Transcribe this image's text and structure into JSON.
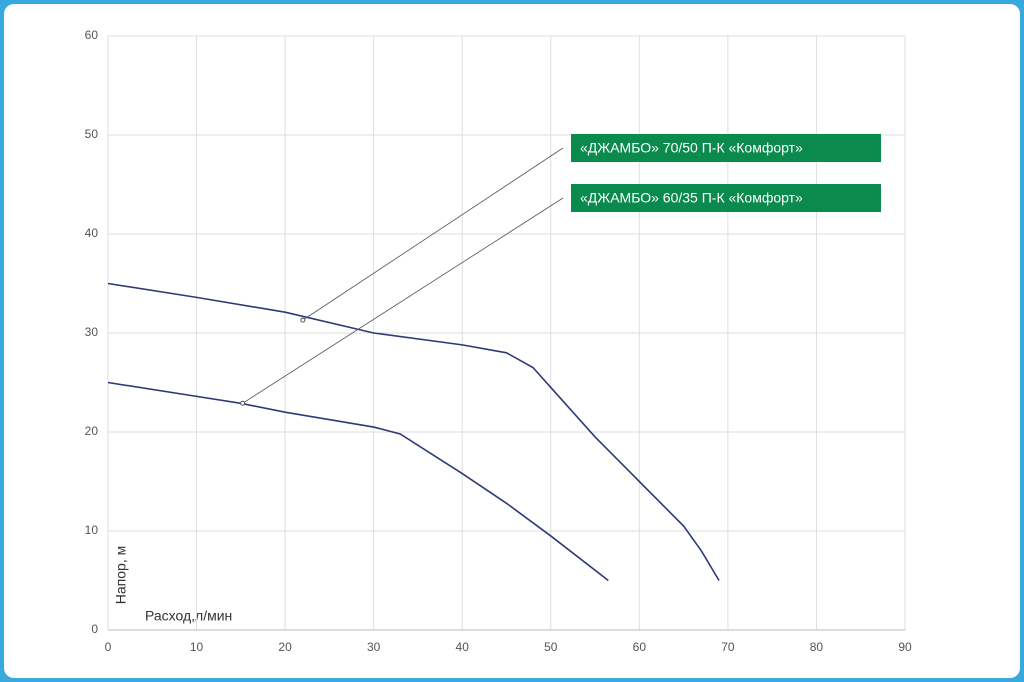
{
  "chart_data": {
    "type": "line",
    "xlabel": "Расход,л/мин",
    "ylabel": "Напор, м",
    "xlim": [
      0,
      90
    ],
    "xticks": [
      0,
      10,
      20,
      30,
      40,
      50,
      60,
      70,
      80,
      90
    ],
    "ylim": [
      0,
      60
    ],
    "yticks": [
      0,
      10,
      20,
      30,
      40,
      50,
      60
    ],
    "grid": true,
    "series": [
      {
        "name": "«ДЖАМБО» 70/50 П-К «Комфорт»",
        "color": "#2e3a78",
        "label_color": "#0b8a4e",
        "x": [
          0,
          10,
          20,
          30,
          40,
          45,
          48,
          50,
          55,
          60,
          65,
          67,
          69
        ],
        "values": [
          35,
          33.6,
          32.1,
          30,
          28.8,
          28,
          26.5,
          24.5,
          19.5,
          15,
          10.5,
          8,
          5
        ],
        "anchor": {
          "x": 22,
          "y": 31.3
        }
      },
      {
        "name": "«ДЖАМБО» 60/35 П-К «Комфорт»",
        "color": "#2e3a78",
        "label_color": "#0b8a4e",
        "x": [
          0,
          10,
          15,
          20,
          30,
          33,
          40,
          45,
          50,
          56.5
        ],
        "values": [
          25,
          23.6,
          22.9,
          22,
          20.5,
          19.8,
          15.8,
          12.8,
          9.5,
          5
        ],
        "anchor": {
          "x": 15.2,
          "y": 22.9
        }
      }
    ]
  }
}
